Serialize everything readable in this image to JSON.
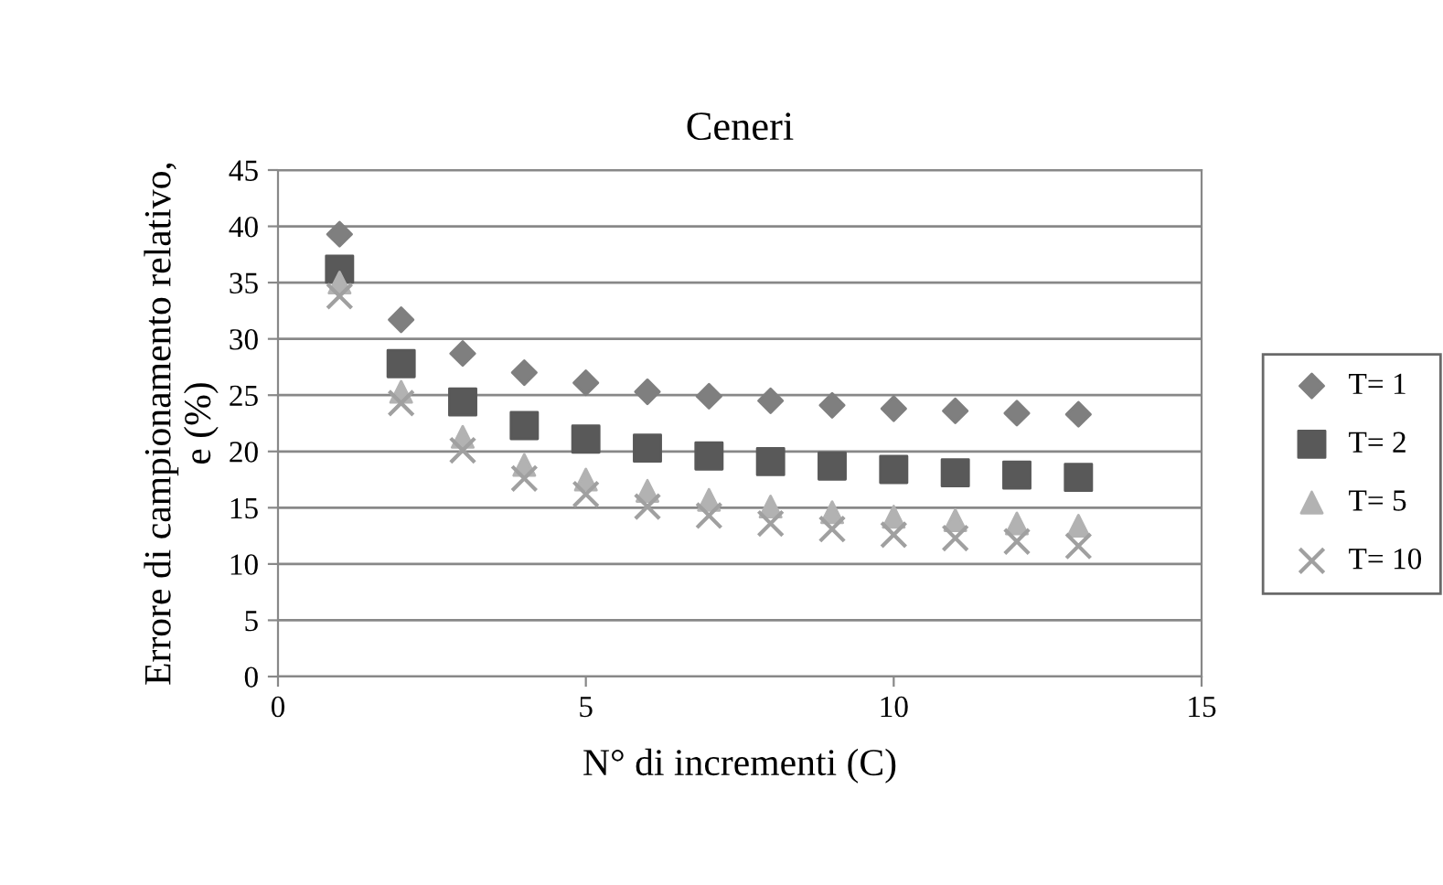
{
  "chart_data": {
    "type": "scatter",
    "title": "Ceneri",
    "xlabel": "N° di incrementi (C)",
    "ylabel": "Errore di campionamento relativo,\ne (%)",
    "x": [
      1,
      2,
      3,
      4,
      5,
      6,
      7,
      8,
      9,
      10,
      11,
      12,
      13
    ],
    "series": [
      {
        "name": "T= 1",
        "color": "#7f7f7f",
        "marker": "diamond",
        "values": [
          39.3,
          31.7,
          28.7,
          27.0,
          26.1,
          25.3,
          24.9,
          24.5,
          24.1,
          23.8,
          23.6,
          23.4,
          23.3
        ]
      },
      {
        "name": "T= 2",
        "color": "#595959",
        "marker": "square",
        "values": [
          36.2,
          27.8,
          24.4,
          22.3,
          21.1,
          20.3,
          19.6,
          19.1,
          18.7,
          18.4,
          18.1,
          17.9,
          17.7
        ]
      },
      {
        "name": "T= 5",
        "color": "#b2b2b2",
        "marker": "triangle",
        "values": [
          35.0,
          25.3,
          21.3,
          18.8,
          17.5,
          16.5,
          15.7,
          15.1,
          14.6,
          14.2,
          13.9,
          13.6,
          13.4
        ]
      },
      {
        "name": "T= 10",
        "color": "#a0a0a0",
        "marker": "cross",
        "values": [
          33.8,
          24.3,
          20.1,
          17.6,
          16.2,
          15.1,
          14.3,
          13.6,
          13.1,
          12.6,
          12.3,
          12.0,
          11.6
        ]
      }
    ],
    "xlim": [
      0,
      15
    ],
    "xticks": [
      0,
      5,
      10,
      15
    ],
    "ylim": [
      0,
      45
    ],
    "yticks": [
      0,
      5,
      10,
      15,
      20,
      25,
      30,
      35,
      40,
      45
    ],
    "grid": "y",
    "legend": "right"
  }
}
